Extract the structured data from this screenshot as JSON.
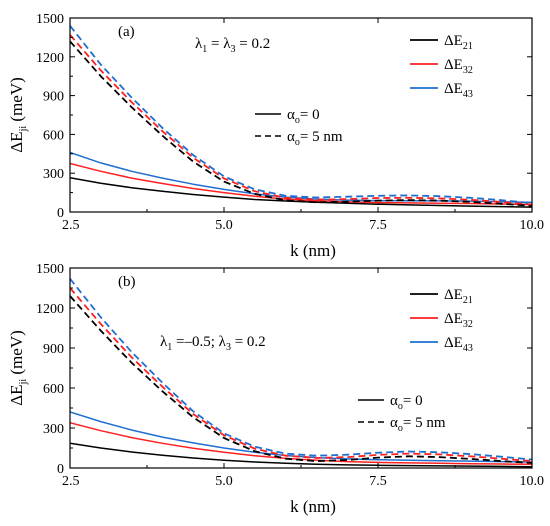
{
  "chart_data": [
    {
      "type": "line",
      "panel_label": "(a)",
      "annotation": {
        "l1": "λ",
        "s1": "1",
        "mid": " = λ",
        "s2": "3",
        "rest": " = 0.2"
      },
      "xlabel": "k (nm)",
      "ylabel": {
        "main": "ΔE",
        "sub": "ji",
        "rest": " (meV)"
      },
      "xlim": [
        2.5,
        10.0
      ],
      "ylim": [
        0,
        1500
      ],
      "xticks": [
        "2.5",
        "5.0",
        "7.5",
        "10.0"
      ],
      "yticks": [
        "0",
        "300",
        "600",
        "900",
        "1200",
        "1500"
      ],
      "legend_series": [
        {
          "main": "ΔE",
          "sub": "21",
          "color": "#000000"
        },
        {
          "main": "ΔE",
          "sub": "32",
          "color": "#ff2020"
        },
        {
          "main": "ΔE",
          "sub": "43",
          "color": "#1f6fd1"
        }
      ],
      "legend_styles": [
        {
          "main": "α",
          "sub": "o",
          "rest": "= 0",
          "dash": false
        },
        {
          "main": "α",
          "sub": "o",
          "rest": "= 5 nm",
          "dash": true
        }
      ],
      "series": [
        {
          "color": "#000000",
          "dash": false,
          "x": [
            2.5,
            3.0,
            3.5,
            4.0,
            4.5,
            5.0,
            5.5,
            6.0,
            6.5,
            7.0,
            7.5,
            8.0,
            8.5,
            9.0,
            9.5,
            10.0
          ],
          "y": [
            265,
            222,
            188,
            160,
            135,
            115,
            97,
            85,
            75,
            67,
            60,
            55,
            50,
            46,
            42,
            38
          ]
        },
        {
          "color": "#ff2020",
          "dash": false,
          "x": [
            2.5,
            3.0,
            3.5,
            4.0,
            4.5,
            5.0,
            5.5,
            6.0,
            6.5,
            7.0,
            7.5,
            8.0,
            8.5,
            9.0,
            9.5,
            10.0
          ],
          "y": [
            375,
            315,
            262,
            220,
            182,
            150,
            122,
            100,
            87,
            78,
            73,
            70,
            68,
            66,
            62,
            57
          ]
        },
        {
          "color": "#1f6fd1",
          "dash": false,
          "x": [
            2.5,
            3.0,
            3.5,
            4.0,
            4.5,
            5.0,
            5.5,
            6.0,
            6.5,
            7.0,
            7.5,
            8.0,
            8.5,
            9.0,
            9.5,
            10.0
          ],
          "y": [
            460,
            380,
            315,
            262,
            215,
            175,
            140,
            115,
            100,
            92,
            88,
            87,
            86,
            84,
            80,
            74
          ]
        },
        {
          "color": "#000000",
          "dash": true,
          "x": [
            2.5,
            3.0,
            3.5,
            4.0,
            4.5,
            5.0,
            5.5,
            6.0,
            6.5,
            7.0,
            7.5,
            8.0,
            8.5,
            9.0,
            9.5,
            10.0
          ],
          "y": [
            1320,
            1050,
            810,
            590,
            390,
            235,
            140,
            90,
            75,
            80,
            88,
            92,
            88,
            78,
            64,
            48
          ]
        },
        {
          "color": "#ff2020",
          "dash": true,
          "x": [
            2.5,
            3.0,
            3.5,
            4.0,
            4.5,
            5.0,
            5.5,
            6.0,
            6.5,
            7.0,
            7.5,
            8.0,
            8.5,
            9.0,
            9.5,
            10.0
          ],
          "y": [
            1370,
            1095,
            850,
            625,
            420,
            260,
            160,
            110,
            95,
            100,
            108,
            110,
            105,
            94,
            78,
            58
          ]
        },
        {
          "color": "#1f6fd1",
          "dash": true,
          "x": [
            2.5,
            3.0,
            3.5,
            4.0,
            4.5,
            5.0,
            5.5,
            6.0,
            6.5,
            7.0,
            7.5,
            8.0,
            8.5,
            9.0,
            9.5,
            10.0
          ],
          "y": [
            1440,
            1140,
            885,
            650,
            440,
            275,
            175,
            125,
            112,
            118,
            125,
            128,
            122,
            110,
            92,
            68
          ]
        }
      ]
    },
    {
      "type": "line",
      "panel_label": "(b)",
      "annotation": {
        "l1": "λ",
        "s1": "1",
        "mid": " =–0.5; λ",
        "s2": "3",
        "rest": " = 0.2"
      },
      "xlabel": "k (nm)",
      "ylabel": {
        "main": "ΔE",
        "sub": "ji",
        "rest": " (meV)"
      },
      "xlim": [
        2.5,
        10.0
      ],
      "ylim": [
        0,
        1500
      ],
      "xticks": [
        "2.5",
        "5.0",
        "7.5",
        "10.0"
      ],
      "yticks": [
        "0",
        "300",
        "600",
        "900",
        "1200",
        "1500"
      ],
      "legend_series": [
        {
          "main": "ΔE",
          "sub": "21",
          "color": "#000000"
        },
        {
          "main": "ΔE",
          "sub": "32",
          "color": "#ff2020"
        },
        {
          "main": "ΔE",
          "sub": "43",
          "color": "#1f6fd1"
        }
      ],
      "legend_styles": [
        {
          "main": "α",
          "sub": "o",
          "rest": "= 0",
          "dash": false
        },
        {
          "main": "α",
          "sub": "o",
          "rest": "= 5 nm",
          "dash": true
        }
      ],
      "series": [
        {
          "color": "#000000",
          "dash": false,
          "x": [
            2.5,
            3.0,
            3.5,
            4.0,
            4.5,
            5.0,
            5.5,
            6.0,
            6.5,
            7.0,
            7.5,
            8.0,
            8.5,
            9.0,
            9.5,
            10.0
          ],
          "y": [
            185,
            150,
            120,
            95,
            75,
            58,
            45,
            35,
            28,
            23,
            20,
            18,
            16,
            14,
            12,
            10
          ]
        },
        {
          "color": "#ff2020",
          "dash": false,
          "x": [
            2.5,
            3.0,
            3.5,
            4.0,
            4.5,
            5.0,
            5.5,
            6.0,
            6.5,
            7.0,
            7.5,
            8.0,
            8.5,
            9.0,
            9.5,
            10.0
          ],
          "y": [
            340,
            280,
            228,
            185,
            148,
            118,
            92,
            72,
            58,
            48,
            42,
            38,
            35,
            32,
            30,
            28
          ]
        },
        {
          "color": "#1f6fd1",
          "dash": false,
          "x": [
            2.5,
            3.0,
            3.5,
            4.0,
            4.5,
            5.0,
            5.5,
            6.0,
            6.5,
            7.0,
            7.5,
            8.0,
            8.5,
            9.0,
            9.5,
            10.0
          ],
          "y": [
            420,
            348,
            285,
            232,
            188,
            150,
            118,
            94,
            78,
            68,
            62,
            58,
            55,
            52,
            48,
            45
          ]
        },
        {
          "color": "#000000",
          "dash": true,
          "x": [
            2.5,
            3.0,
            3.5,
            4.0,
            4.5,
            5.0,
            5.5,
            6.0,
            6.5,
            7.0,
            7.5,
            8.0,
            8.5,
            9.0,
            9.5,
            10.0
          ],
          "y": [
            1290,
            1030,
            790,
            575,
            380,
            225,
            125,
            70,
            52,
            60,
            78,
            88,
            82,
            68,
            52,
            38
          ]
        },
        {
          "color": "#ff2020",
          "dash": true,
          "x": [
            2.5,
            3.0,
            3.5,
            4.0,
            4.5,
            5.0,
            5.5,
            6.0,
            6.5,
            7.0,
            7.5,
            8.0,
            8.5,
            9.0,
            9.5,
            10.0
          ],
          "y": [
            1350,
            1080,
            830,
            610,
            405,
            245,
            145,
            92,
            75,
            82,
            98,
            108,
            102,
            88,
            70,
            52
          ]
        },
        {
          "color": "#1f6fd1",
          "dash": true,
          "x": [
            2.5,
            3.0,
            3.5,
            4.0,
            4.5,
            5.0,
            5.5,
            6.0,
            6.5,
            7.0,
            7.5,
            8.0,
            8.5,
            9.0,
            9.5,
            10.0
          ],
          "y": [
            1420,
            1130,
            870,
            640,
            425,
            260,
            160,
            108,
            92,
            100,
            115,
            124,
            118,
            104,
            85,
            64
          ]
        }
      ]
    }
  ]
}
